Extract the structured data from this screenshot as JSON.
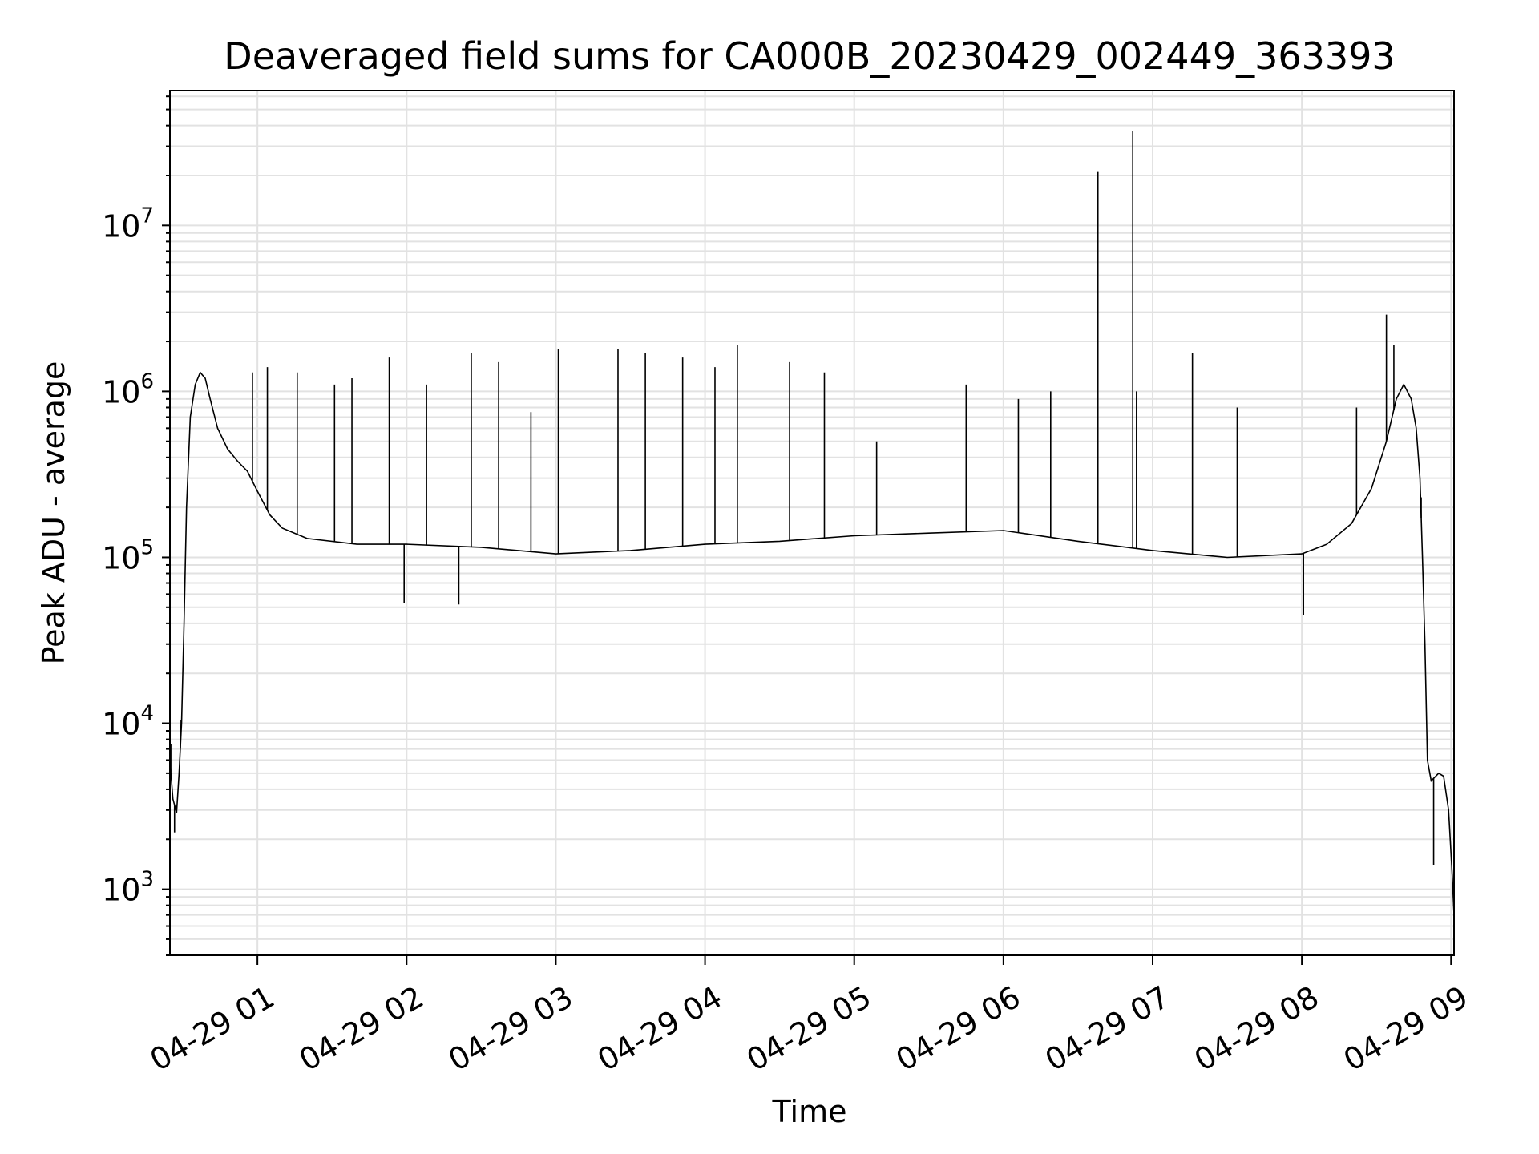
{
  "chart_data": {
    "type": "line",
    "title": "Deaveraged field sums for CA000B_20230429_002449_363393",
    "xlabel": "Time",
    "ylabel": "Peak ADU - average",
    "yscale": "log",
    "ylim": [
      400,
      65000000
    ],
    "xlim": [
      "04-29 00:24:49",
      "04-29 09:01:12"
    ],
    "grid": true,
    "line_color": "#000000",
    "x_ticks": [
      {
        "label": "04-29 01",
        "time": "04-29 01:00"
      },
      {
        "label": "04-29 02",
        "time": "04-29 02:00"
      },
      {
        "label": "04-29 03",
        "time": "04-29 03:00"
      },
      {
        "label": "04-29 04",
        "time": "04-29 04:00"
      },
      {
        "label": "04-29 05",
        "time": "04-29 05:00"
      },
      {
        "label": "04-29 06",
        "time": "04-29 06:00"
      },
      {
        "label": "04-29 07",
        "time": "04-29 07:00"
      },
      {
        "label": "04-29 08",
        "time": "04-29 08:00"
      },
      {
        "label": "04-29 09",
        "time": "04-29 09:00"
      }
    ],
    "y_ticks": [
      {
        "base": "10",
        "exp": "3",
        "value": 1000
      },
      {
        "base": "10",
        "exp": "4",
        "value": 10000
      },
      {
        "base": "10",
        "exp": "5",
        "value": 100000
      },
      {
        "base": "10",
        "exp": "6",
        "value": 1000000
      },
      {
        "base": "10",
        "exp": "7",
        "value": 10000000
      }
    ],
    "series": [
      {
        "points": [
          [
            "04-29 00:24:49",
            6000
          ],
          [
            "04-29 00:26:00",
            3500
          ],
          [
            "04-29 00:27:30",
            2900
          ],
          [
            "04-29 00:28:30",
            5000
          ],
          [
            "04-29 00:29:30",
            10000
          ],
          [
            "04-29 00:30:30",
            40000
          ],
          [
            "04-29 00:31:30",
            200000
          ],
          [
            "04-29 00:33:00",
            700000
          ],
          [
            "04-29 00:35:00",
            1100000
          ],
          [
            "04-29 00:37:00",
            1300000
          ],
          [
            "04-29 00:39:00",
            1200000
          ],
          [
            "04-29 00:41:00",
            900000
          ],
          [
            "04-29 00:44:00",
            600000
          ],
          [
            "04-29 00:48:00",
            450000
          ],
          [
            "04-29 00:52:00",
            380000
          ],
          [
            "04-29 00:56:00",
            330000
          ],
          [
            "04-29 01:00:00",
            250000
          ],
          [
            "04-29 01:05:00",
            180000
          ],
          [
            "04-29 01:10:00",
            150000
          ],
          [
            "04-29 01:20:00",
            130000
          ],
          [
            "04-29 01:40:00",
            120000
          ],
          [
            "04-29 02:00:00",
            120000
          ],
          [
            "04-29 02:30:00",
            115000
          ],
          [
            "04-29 03:00:00",
            105000
          ],
          [
            "04-29 03:30:00",
            110000
          ],
          [
            "04-29 04:00:00",
            120000
          ],
          [
            "04-29 04:30:00",
            125000
          ],
          [
            "04-29 05:00:00",
            135000
          ],
          [
            "04-29 05:30:00",
            140000
          ],
          [
            "04-29 06:00:00",
            145000
          ],
          [
            "04-29 06:30:00",
            125000
          ],
          [
            "04-29 07:00:00",
            110000
          ],
          [
            "04-29 07:30:00",
            100000
          ],
          [
            "04-29 08:00:00",
            105000
          ],
          [
            "04-29 08:10:00",
            120000
          ],
          [
            "04-29 08:20:00",
            160000
          ],
          [
            "04-29 08:28:00",
            260000
          ],
          [
            "04-29 08:34:00",
            500000
          ],
          [
            "04-29 08:38:00",
            900000
          ],
          [
            "04-29 08:41:00",
            1100000
          ],
          [
            "04-29 08:44:00",
            900000
          ],
          [
            "04-29 08:46:00",
            600000
          ],
          [
            "04-29 08:47:30",
            300000
          ],
          [
            "04-29 08:48:30",
            100000
          ],
          [
            "04-29 08:49:30",
            30000
          ],
          [
            "04-29 08:50:30",
            6000
          ],
          [
            "04-29 08:52:00",
            4500
          ],
          [
            "04-29 08:55:00",
            5000
          ],
          [
            "04-29 08:57:00",
            4800
          ],
          [
            "04-29 08:59:00",
            3000
          ],
          [
            "04-29 09:00:30",
            1200
          ],
          [
            "04-29 09:01:12",
            700
          ]
        ],
        "spikes": [
          [
            "04-29 00:25:10",
            7500
          ],
          [
            "04-29 00:26:40",
            2200
          ],
          [
            "04-29 00:29:00",
            10500
          ],
          [
            "04-29 00:58:00",
            1300000
          ],
          [
            "04-29 01:04:00",
            1400000
          ],
          [
            "04-29 01:16:00",
            1300000
          ],
          [
            "04-29 01:31:00",
            1100000
          ],
          [
            "04-29 01:38:00",
            1200000
          ],
          [
            "04-29 01:53:00",
            1600000
          ],
          [
            "04-29 02:08:00",
            1100000
          ],
          [
            "04-29 02:26:00",
            1700000
          ],
          [
            "04-29 02:37:00",
            1500000
          ],
          [
            "04-29 02:50:00",
            750000
          ],
          [
            "04-29 03:01:00",
            1800000
          ],
          [
            "04-29 03:25:00",
            1800000
          ],
          [
            "04-29 03:36:00",
            1700000
          ],
          [
            "04-29 03:51:00",
            1600000
          ],
          [
            "04-29 04:04:00",
            1400000
          ],
          [
            "04-29 04:13:00",
            1900000
          ],
          [
            "04-29 04:34:00",
            1500000
          ],
          [
            "04-29 04:48:00",
            1300000
          ],
          [
            "04-29 05:09:00",
            500000
          ],
          [
            "04-29 05:45:00",
            1100000
          ],
          [
            "04-29 06:06:00",
            900000
          ],
          [
            "04-29 06:19:00",
            1000000
          ],
          [
            "04-29 06:38:00",
            21000000
          ],
          [
            "04-29 06:52:00",
            37000000
          ],
          [
            "04-29 06:53:30",
            1000000
          ],
          [
            "04-29 07:16:00",
            1700000
          ],
          [
            "04-29 07:34:00",
            800000
          ],
          [
            "04-29 08:22:00",
            800000
          ],
          [
            "04-29 08:34:00",
            2900000
          ],
          [
            "04-29 08:37:00",
            1900000
          ],
          [
            "04-29 08:00:40",
            45000
          ],
          [
            "04-29 02:21:00",
            52000
          ],
          [
            "04-29 01:59:00",
            53000
          ],
          [
            "04-29 08:53:00",
            1400
          ],
          [
            "04-29 08:48:00",
            230000
          ]
        ]
      }
    ]
  }
}
